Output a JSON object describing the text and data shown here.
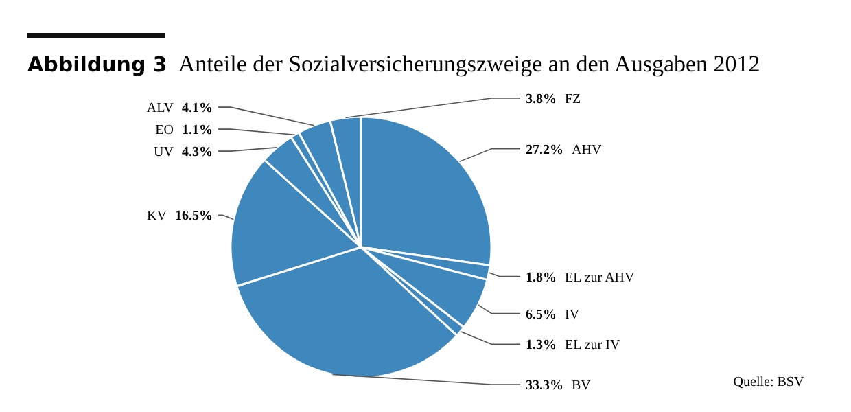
{
  "chart_data": {
    "type": "pie",
    "title": "Abbildung 3",
    "subtitle": "Anteile der Sozialversicherungszweige an den Ausgaben 2012",
    "categories": [
      "AHV",
      "EL zur AHV",
      "IV",
      "EL zur IV",
      "BV",
      "KV",
      "UV",
      "EO",
      "ALV",
      "FZ"
    ],
    "values": [
      27.2,
      1.8,
      6.5,
      1.3,
      33.3,
      16.5,
      4.3,
      1.1,
      4.1,
      3.8
    ],
    "colors": [
      "#3f88bd",
      "#3f88bd",
      "#3f88bd",
      "#3f88bd",
      "#3f88bd",
      "#3f88bd",
      "#3f88bd",
      "#3f88bd",
      "#3f88bd",
      "#3f88bd"
    ],
    "value_labels": [
      "27.2%",
      "1.8%",
      "6.5%",
      "1.3%",
      "33.3%",
      "16.5%",
      "4.3%",
      "1.1%",
      "4.1%",
      "3.8%"
    ],
    "legend": false,
    "annotations": [
      "Quelle: BSV"
    ]
  }
}
